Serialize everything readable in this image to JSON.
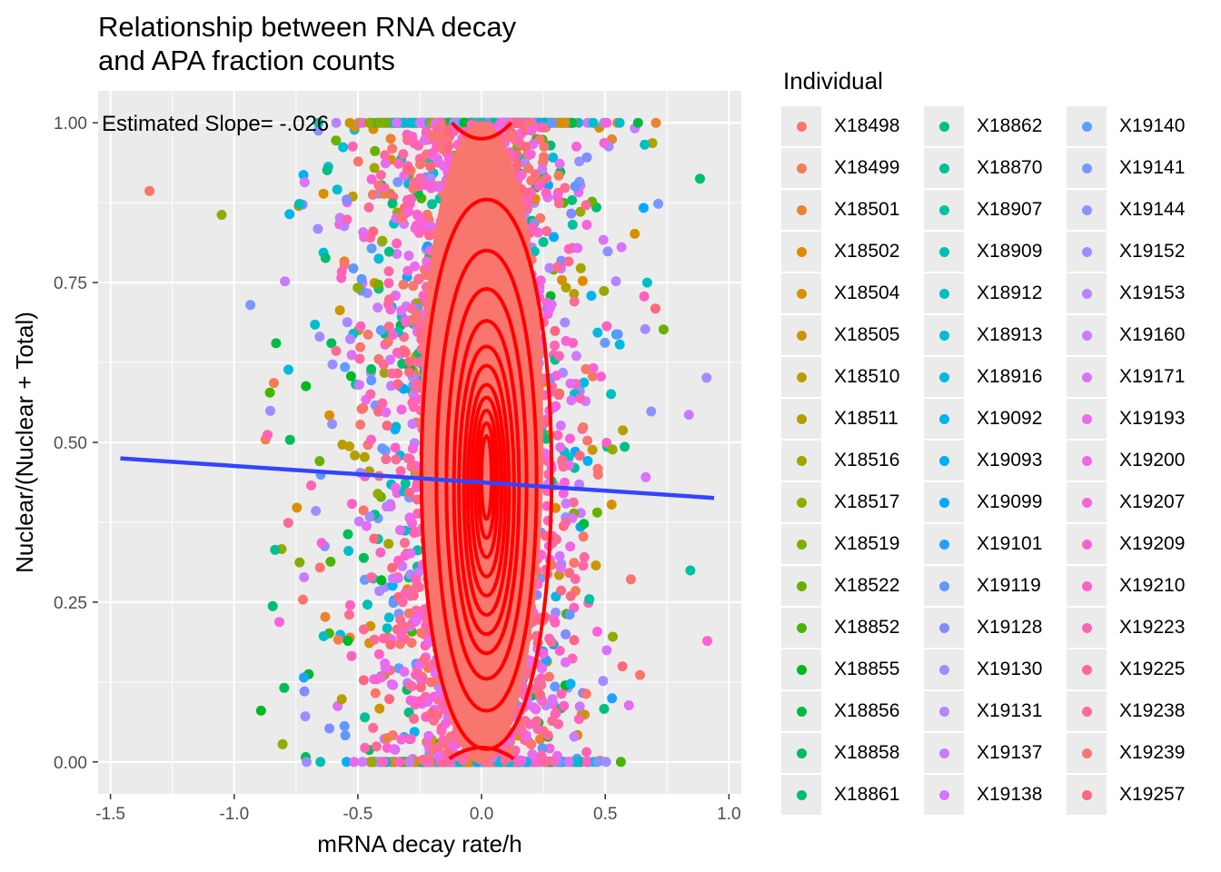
{
  "chart_data": {
    "type": "scatter",
    "title": "Relationship between RNA decay\nand APA fraction counts",
    "xlabel": "mRNA decay rate/h",
    "ylabel": "Nuclear/(Nuclear + Total)",
    "xlim": [
      -1.55,
      1.05
    ],
    "ylim": [
      -0.05,
      1.05
    ],
    "x_ticks": [
      -1.5,
      -1.0,
      -0.5,
      0.0,
      0.5,
      1.0
    ],
    "x_tick_labels": [
      "-1.5",
      "-1.0",
      "-0.5",
      "0.0",
      "0.5",
      "1.0"
    ],
    "y_ticks": [
      0.0,
      0.25,
      0.5,
      0.75,
      1.0
    ],
    "y_tick_labels": [
      "0.00",
      "0.25",
      "0.50",
      "0.75",
      "1.00"
    ],
    "grid": true,
    "annotation": "Estimated Slope= -.026",
    "regression_line": {
      "x": [
        -1.46,
        0.94
      ],
      "y": [
        0.475,
        0.413
      ],
      "color": "#3344ff"
    },
    "density_contour_color": "#ff0000",
    "legend_title": "Individual",
    "legend_position": "right",
    "series": [
      {
        "name": "X18498",
        "color": "#F8766D"
      },
      {
        "name": "X18499",
        "color": "#F27D52"
      },
      {
        "name": "X18501",
        "color": "#EA8331"
      },
      {
        "name": "X18502",
        "color": "#E18A00"
      },
      {
        "name": "X18504",
        "color": "#D89000"
      },
      {
        "name": "X18505",
        "color": "#CD9600"
      },
      {
        "name": "X18510",
        "color": "#C09B00"
      },
      {
        "name": "X18511",
        "color": "#B3A000"
      },
      {
        "name": "X18516",
        "color": "#A3A500"
      },
      {
        "name": "X18517",
        "color": "#93AA00"
      },
      {
        "name": "X18519",
        "color": "#7FAE00"
      },
      {
        "name": "X18522",
        "color": "#68B100"
      },
      {
        "name": "X18852",
        "color": "#49B500"
      },
      {
        "name": "X18855",
        "color": "#00B81F"
      },
      {
        "name": "X18856",
        "color": "#00BA42"
      },
      {
        "name": "X18858",
        "color": "#00BC5A"
      },
      {
        "name": "X18861",
        "color": "#00BE6F"
      },
      {
        "name": "X18862",
        "color": "#00BF82"
      },
      {
        "name": "X18870",
        "color": "#00C094"
      },
      {
        "name": "X18907",
        "color": "#00C1A5"
      },
      {
        "name": "X18909",
        "color": "#00C0B5"
      },
      {
        "name": "X18912",
        "color": "#00BFC4"
      },
      {
        "name": "X18913",
        "color": "#00BDD2"
      },
      {
        "name": "X18916",
        "color": "#00BADE"
      },
      {
        "name": "X19092",
        "color": "#00B6EB"
      },
      {
        "name": "X19093",
        "color": "#00B0F6"
      },
      {
        "name": "X19099",
        "color": "#00A9FF"
      },
      {
        "name": "X19101",
        "color": "#21A0FF"
      },
      {
        "name": "X19119",
        "color": "#6197FF"
      },
      {
        "name": "X19128",
        "color": "#808CFF"
      },
      {
        "name": "X19130",
        "color": "#9C8EFF"
      },
      {
        "name": "X19131",
        "color": "#B385FF"
      },
      {
        "name": "X19137",
        "color": "#C77CFF"
      },
      {
        "name": "X19138",
        "color": "#D774FD"
      },
      {
        "name": "X19140",
        "color": "#619CFF"
      },
      {
        "name": "X19141",
        "color": "#7997FF"
      },
      {
        "name": "X19144",
        "color": "#8F91FF"
      },
      {
        "name": "X19152",
        "color": "#A58AFF"
      },
      {
        "name": "X19153",
        "color": "#B983FF"
      },
      {
        "name": "X19160",
        "color": "#CB7BFF"
      },
      {
        "name": "X19171",
        "color": "#DB72FB"
      },
      {
        "name": "X19193",
        "color": "#E76BF3"
      },
      {
        "name": "X19200",
        "color": "#F166E9"
      },
      {
        "name": "X19207",
        "color": "#F962DD"
      },
      {
        "name": "X19209",
        "color": "#FD61D1"
      },
      {
        "name": "X19210",
        "color": "#FF61C3"
      },
      {
        "name": "X19223",
        "color": "#FF63B6"
      },
      {
        "name": "X19225",
        "color": "#FF67A4"
      },
      {
        "name": "X19238",
        "color": "#FC6B94"
      },
      {
        "name": "X19239",
        "color": "#F8766D"
      },
      {
        "name": "X19257",
        "color": "#FF6680"
      }
    ]
  }
}
